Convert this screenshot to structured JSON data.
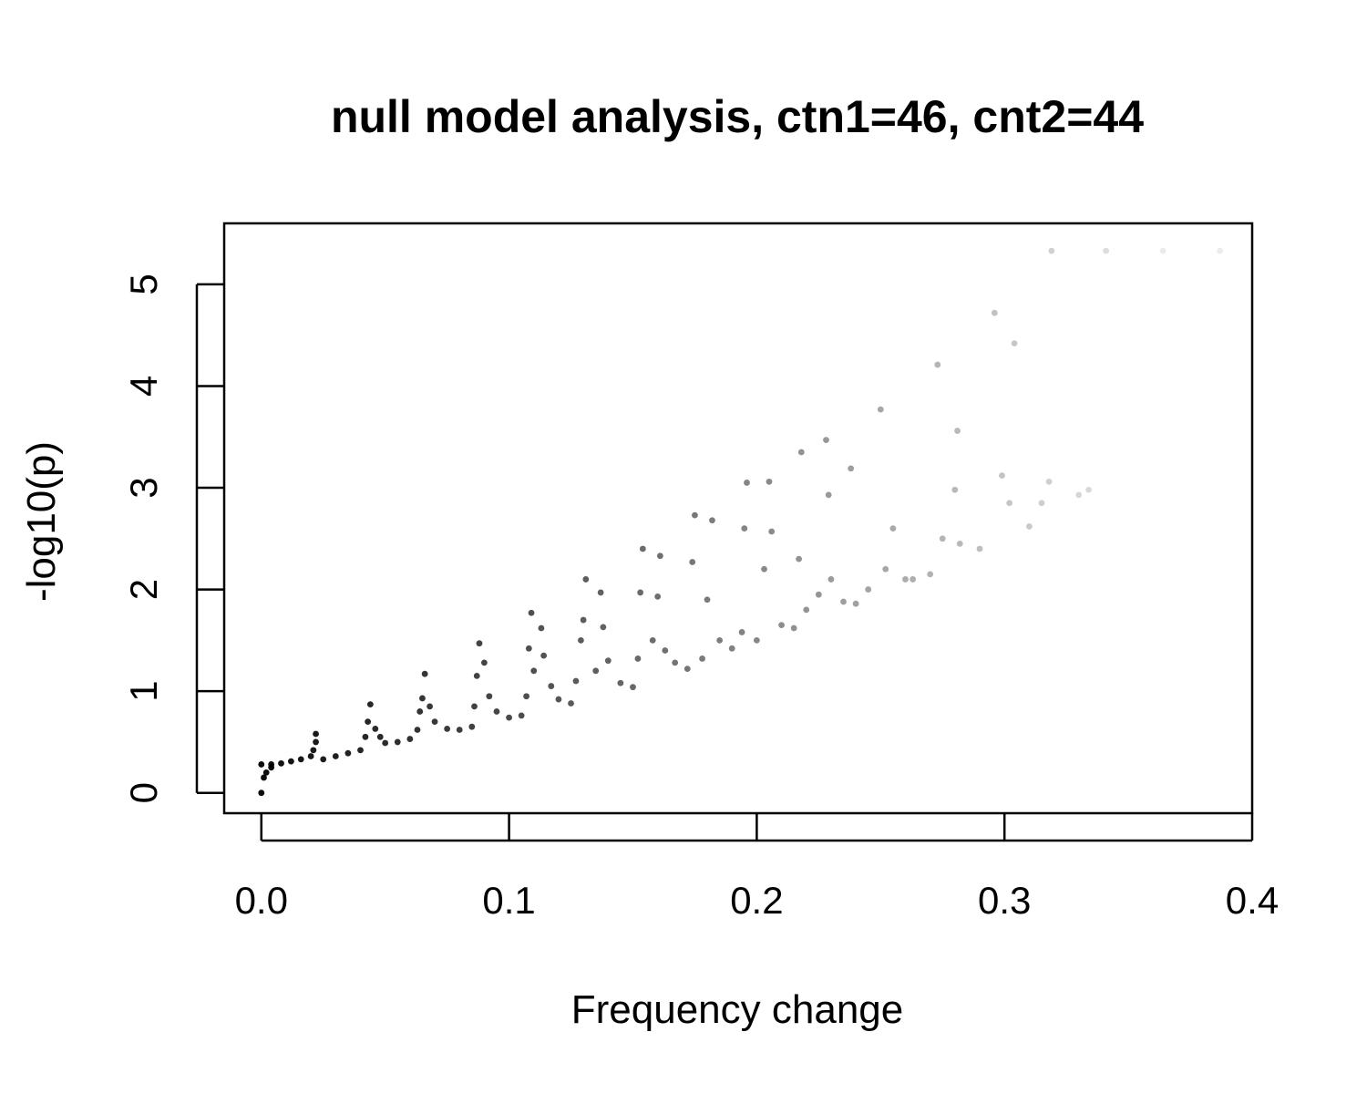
{
  "chart_data": {
    "type": "scatter",
    "title": "null model analysis, ctn1=46, cnt2=44",
    "xlabel": "Frequency change",
    "ylabel": "-log10(p)",
    "xlim": [
      -0.015,
      0.4
    ],
    "ylim": [
      -0.2,
      5.6
    ],
    "xticks": [
      0.0,
      0.1,
      0.2,
      0.3,
      0.4
    ],
    "xtick_labels": [
      "0.0",
      "0.1",
      "0.2",
      "0.3",
      "0.4"
    ],
    "yticks": [
      0,
      1,
      2,
      3,
      4,
      5
    ],
    "ytick_labels": [
      "0",
      "1",
      "2",
      "3",
      "4",
      "5"
    ],
    "grid": false,
    "legend": "none",
    "marker_color": "#000000",
    "background": "#ffffff",
    "series": [
      {
        "values_note_free": true,
        "points": [
          [
            0.0,
            0.0
          ],
          [
            0.001,
            0.15
          ],
          [
            0.002,
            0.2
          ],
          [
            0.004,
            0.25
          ],
          [
            0.0,
            0.28
          ],
          [
            0.004,
            0.28
          ],
          [
            0.008,
            0.29
          ],
          [
            0.012,
            0.31
          ],
          [
            0.016,
            0.33
          ],
          [
            0.02,
            0.36
          ],
          [
            0.021,
            0.42
          ],
          [
            0.022,
            0.5
          ],
          [
            0.022,
            0.58
          ],
          [
            0.025,
            0.33
          ],
          [
            0.03,
            0.36
          ],
          [
            0.035,
            0.39
          ],
          [
            0.04,
            0.42
          ],
          [
            0.042,
            0.55
          ],
          [
            0.043,
            0.7
          ],
          [
            0.044,
            0.87
          ],
          [
            0.046,
            0.63
          ],
          [
            0.048,
            0.55
          ],
          [
            0.05,
            0.49
          ],
          [
            0.055,
            0.5
          ],
          [
            0.06,
            0.53
          ],
          [
            0.063,
            0.62
          ],
          [
            0.064,
            0.8
          ],
          [
            0.065,
            0.93
          ],
          [
            0.066,
            1.17
          ],
          [
            0.068,
            0.85
          ],
          [
            0.07,
            0.7
          ],
          [
            0.075,
            0.63
          ],
          [
            0.08,
            0.62
          ],
          [
            0.085,
            0.65
          ],
          [
            0.086,
            0.85
          ],
          [
            0.087,
            1.15
          ],
          [
            0.088,
            1.47
          ],
          [
            0.09,
            1.28
          ],
          [
            0.092,
            0.95
          ],
          [
            0.095,
            0.8
          ],
          [
            0.1,
            0.74
          ],
          [
            0.105,
            0.76
          ],
          [
            0.107,
            0.95
          ],
          [
            0.108,
            1.42
          ],
          [
            0.109,
            1.77
          ],
          [
            0.11,
            1.2
          ],
          [
            0.113,
            1.62
          ],
          [
            0.114,
            1.35
          ],
          [
            0.117,
            1.05
          ],
          [
            0.12,
            0.92
          ],
          [
            0.125,
            0.88
          ],
          [
            0.127,
            1.1
          ],
          [
            0.129,
            1.5
          ],
          [
            0.13,
            1.7
          ],
          [
            0.131,
            2.1
          ],
          [
            0.135,
            1.2
          ],
          [
            0.137,
            1.97
          ],
          [
            0.138,
            1.63
          ],
          [
            0.14,
            1.3
          ],
          [
            0.145,
            1.08
          ],
          [
            0.15,
            1.04
          ],
          [
            0.152,
            1.32
          ],
          [
            0.153,
            1.97
          ],
          [
            0.154,
            2.4
          ],
          [
            0.158,
            1.5
          ],
          [
            0.16,
            1.93
          ],
          [
            0.161,
            2.33
          ],
          [
            0.163,
            1.4
          ],
          [
            0.167,
            1.28
          ],
          [
            0.172,
            1.22
          ],
          [
            0.174,
            2.27
          ],
          [
            0.175,
            2.73
          ],
          [
            0.178,
            1.32
          ],
          [
            0.18,
            1.9
          ],
          [
            0.182,
            2.68
          ],
          [
            0.185,
            1.5
          ],
          [
            0.19,
            1.42
          ],
          [
            0.194,
            1.58
          ],
          [
            0.195,
            2.6
          ],
          [
            0.196,
            3.05
          ],
          [
            0.2,
            1.5
          ],
          [
            0.203,
            2.2
          ],
          [
            0.205,
            3.06
          ],
          [
            0.206,
            2.57
          ],
          [
            0.21,
            1.65
          ],
          [
            0.215,
            1.62
          ],
          [
            0.217,
            2.3
          ],
          [
            0.218,
            3.35
          ],
          [
            0.22,
            1.8
          ],
          [
            0.225,
            1.95
          ],
          [
            0.228,
            3.47
          ],
          [
            0.229,
            2.93
          ],
          [
            0.23,
            2.1
          ],
          [
            0.235,
            1.88
          ],
          [
            0.24,
            1.86
          ],
          [
            0.238,
            3.19
          ],
          [
            0.245,
            2.0
          ],
          [
            0.25,
            3.77
          ],
          [
            0.252,
            2.2
          ],
          [
            0.255,
            2.6
          ],
          [
            0.26,
            2.1
          ],
          [
            0.263,
            2.1
          ],
          [
            0.27,
            2.15
          ],
          [
            0.273,
            4.21
          ],
          [
            0.275,
            2.5
          ],
          [
            0.28,
            2.98
          ],
          [
            0.281,
            3.56
          ],
          [
            0.282,
            2.45
          ],
          [
            0.29,
            2.4
          ],
          [
            0.296,
            4.72
          ],
          [
            0.299,
            3.12
          ],
          [
            0.302,
            2.85
          ],
          [
            0.304,
            4.42
          ],
          [
            0.31,
            2.62
          ],
          [
            0.315,
            2.85
          ],
          [
            0.318,
            3.06
          ],
          [
            0.319,
            5.33
          ],
          [
            0.33,
            2.93
          ],
          [
            0.334,
            2.98
          ],
          [
            0.341,
            5.33
          ],
          [
            0.364,
            5.33
          ],
          [
            0.387,
            5.33
          ]
        ]
      }
    ]
  }
}
